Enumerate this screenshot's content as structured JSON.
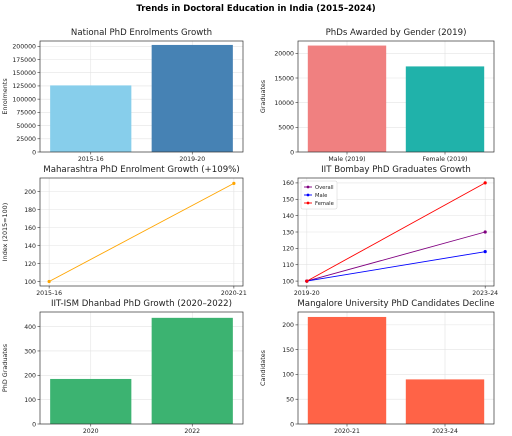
{
  "figure_title": "Trends in Doctoral Education in India (2015–2024)",
  "chart_data": [
    {
      "type": "bar",
      "title": "National PhD Enrolments Growth",
      "xlabel": "",
      "ylabel": "Enrolments",
      "categories": [
        "2015-16",
        "2019-20"
      ],
      "values": [
        126000,
        202550
      ],
      "colors": [
        "#87ceeb",
        "#4682b4"
      ],
      "ylim": [
        0,
        210000
      ],
      "yticks": [
        0,
        25000,
        50000,
        75000,
        100000,
        125000,
        150000,
        175000,
        200000
      ],
      "grid": true
    },
    {
      "type": "bar",
      "title": "PhDs Awarded by Gender (2019)",
      "xlabel": "",
      "ylabel": "Graduates",
      "categories": [
        "Male (2019)",
        "Female (2019)"
      ],
      "values": [
        21577,
        17349
      ],
      "colors": [
        "#f08080",
        "#20b2aa"
      ],
      "ylim": [
        0,
        22500
      ],
      "yticks": [
        0,
        5000,
        10000,
        15000,
        20000
      ],
      "grid": true
    },
    {
      "type": "line",
      "title": "Maharashtra PhD Enrolment Growth (+109%)",
      "xlabel": "",
      "ylabel": "Index (2015=100)",
      "x": [
        "2015-16",
        "2020-21"
      ],
      "series": [
        {
          "values": [
            100,
            209
          ],
          "color": "#ffa500"
        }
      ],
      "ylim": [
        95,
        215
      ],
      "yticks": [
        100,
        120,
        140,
        160,
        180,
        200
      ],
      "grid": true
    },
    {
      "type": "line",
      "title": "IIT Bombay PhD Graduates Growth",
      "xlabel": "",
      "ylabel": "",
      "x": [
        "2019-20",
        "2023-24"
      ],
      "series": [
        {
          "name": "Overall",
          "values": [
            100,
            130
          ],
          "color": "#800080"
        },
        {
          "name": "Male",
          "values": [
            100,
            118
          ],
          "color": "#0000ff"
        },
        {
          "name": "Female",
          "values": [
            100,
            160
          ],
          "color": "#ff0000"
        }
      ],
      "ylim": [
        97,
        163
      ],
      "yticks": [
        100,
        110,
        120,
        130,
        140,
        150,
        160
      ],
      "legend": "top-left",
      "grid": true
    },
    {
      "type": "bar",
      "title": "IIT-ISM Dhanbad PhD Growth (2020–2022)",
      "xlabel": "",
      "ylabel": "PhD Graduates",
      "categories": [
        "2020",
        "2022"
      ],
      "values": [
        185,
        436
      ],
      "colors": [
        "#3cb371",
        "#3cb371"
      ],
      "ylim": [
        0,
        460
      ],
      "yticks": [
        0,
        100,
        200,
        300,
        400
      ],
      "grid": true
    },
    {
      "type": "bar",
      "title": "Mangalore University PhD Candidates Decline",
      "xlabel": "",
      "ylabel": "Candidates",
      "categories": [
        "2020-21",
        "2023-24"
      ],
      "values": [
        216,
        90
      ],
      "colors": [
        "#ff6347",
        "#ff6347"
      ],
      "ylim": [
        0,
        226
      ],
      "yticks": [
        0,
        50,
        100,
        150,
        200
      ],
      "grid": true
    }
  ]
}
